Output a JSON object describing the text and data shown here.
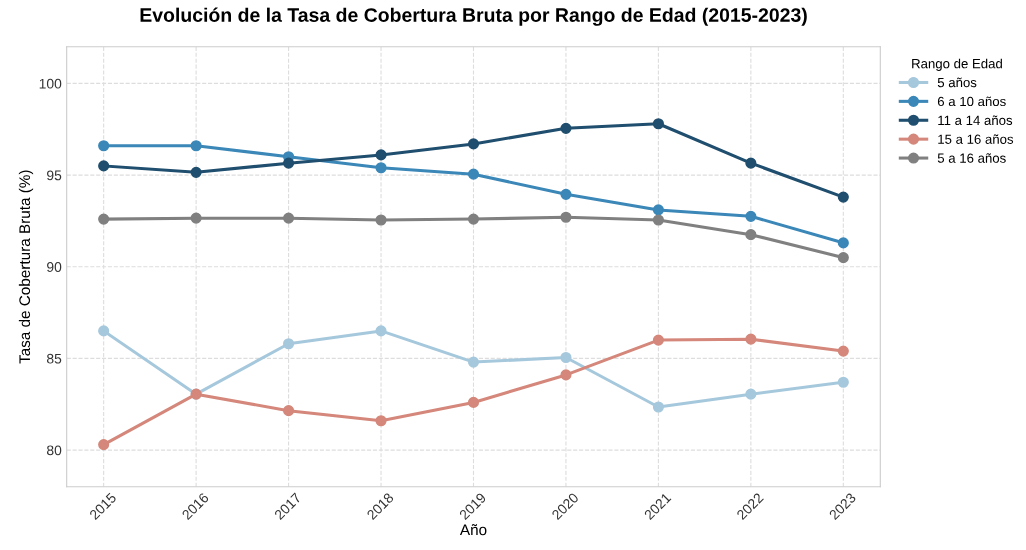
{
  "chart_data": {
    "type": "line",
    "title": "Evolución de la Tasa de Cobertura Bruta por Rango de Edad (2015-2023)",
    "xlabel": "Año",
    "ylabel": "Tasa de Cobertura Bruta (%)",
    "legend_title": "Rango de Edad",
    "x": [
      2015,
      2016,
      2017,
      2018,
      2019,
      2020,
      2021,
      2022,
      2023
    ],
    "series": [
      {
        "name": "5 años",
        "color": "#a6c8dc",
        "values": [
          86.5,
          83.05,
          85.8,
          86.5,
          84.8,
          85.05,
          82.35,
          83.05,
          83.7
        ]
      },
      {
        "name": "6 a 10 años",
        "color": "#3a87b8",
        "values": [
          96.6,
          96.6,
          96.0,
          95.4,
          95.05,
          93.95,
          93.1,
          92.75,
          91.3
        ]
      },
      {
        "name": "11 a 14 años",
        "color": "#1f4e6e",
        "values": [
          95.5,
          95.15,
          95.65,
          96.1,
          96.7,
          97.55,
          97.8,
          95.65,
          93.8
        ]
      },
      {
        "name": "15 a 16 años",
        "color": "#d4877a",
        "values": [
          80.3,
          83.05,
          82.15,
          81.6,
          82.6,
          84.1,
          86.0,
          86.05,
          85.4
        ]
      },
      {
        "name": "5 a 16 años",
        "color": "#808080",
        "values": [
          92.6,
          92.65,
          92.65,
          92.55,
          92.6,
          92.7,
          92.55,
          91.75,
          90.5
        ]
      }
    ],
    "xlim": [
      2014.6,
      2023.4
    ],
    "xticks": [
      2015,
      2016,
      2017,
      2018,
      2019,
      2020,
      2021,
      2022,
      2023
    ],
    "ylim": [
      78,
      102
    ],
    "yticks": [
      80,
      85,
      90,
      95,
      100
    ],
    "grid": true,
    "legend": "top right",
    "marker": "circle",
    "line_style": "solid"
  }
}
